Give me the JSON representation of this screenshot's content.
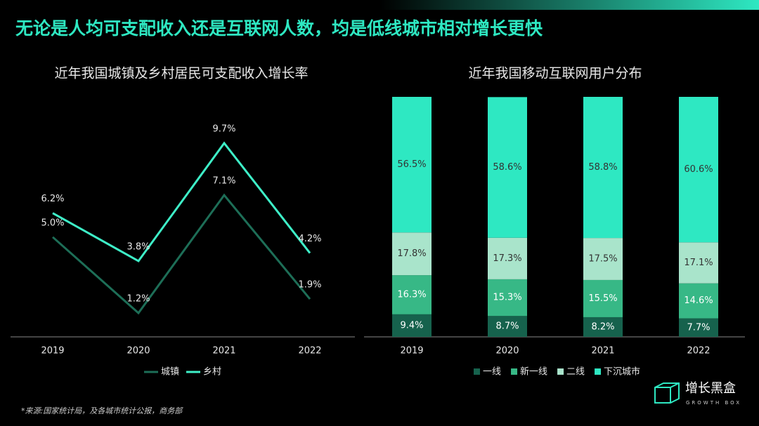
{
  "title": "无论是人均可支配收入还是互联网人数，均是低线城市相对增长更快",
  "source": "*来源:国家统计局，及各城市统计公报，商务部",
  "logo": {
    "name": "增长黑盒",
    "tagline": "GROWTH BOX"
  },
  "chart_data": [
    {
      "type": "line",
      "title": "近年我国城镇及乡村居民可支配收入增长率",
      "categories": [
        "2019",
        "2020",
        "2021",
        "2022"
      ],
      "series": [
        {
          "name": "城镇",
          "color": "#1d6e57",
          "values": [
            5.0,
            1.2,
            7.1,
            1.9
          ],
          "value_labels": [
            "5.0%",
            "1.2%",
            "7.1%",
            "1.9%"
          ]
        },
        {
          "name": "乡村",
          "color": "#3ef0c8",
          "values": [
            6.2,
            3.8,
            9.7,
            4.2
          ],
          "value_labels": [
            "6.2%",
            "3.8%",
            "9.7%",
            "4.2%"
          ]
        }
      ]
    },
    {
      "type": "stacked_bar",
      "title": "近年我国移动互联网用户分布",
      "categories": [
        "2019",
        "2020",
        "2021",
        "2022"
      ],
      "series": [
        {
          "name": "一线",
          "color": "#16624d",
          "values": [
            9.4,
            8.7,
            8.2,
            7.7
          ],
          "value_labels": [
            "9.4%",
            "8.7%",
            "8.2%",
            "7.7%"
          ]
        },
        {
          "name": "新一线",
          "color": "#37b886",
          "values": [
            16.3,
            15.3,
            15.5,
            14.6
          ],
          "value_labels": [
            "16.3%",
            "15.3%",
            "15.5%",
            "14.6%"
          ]
        },
        {
          "name": "二线",
          "color": "#a9e4cb",
          "values": [
            17.8,
            17.3,
            17.5,
            17.1
          ],
          "value_labels": [
            "17.8%",
            "17.3%",
            "17.5%",
            "17.1%"
          ]
        },
        {
          "name": "下沉城市",
          "color": "#2ee8c2",
          "values": [
            56.5,
            58.6,
            58.8,
            60.6
          ],
          "value_labels": [
            "56.5%",
            "58.6%",
            "58.8%",
            "60.6%"
          ]
        }
      ]
    }
  ]
}
